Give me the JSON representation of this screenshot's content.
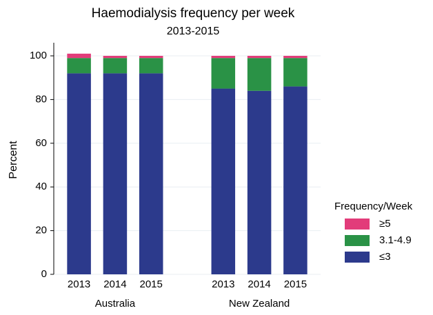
{
  "chart_data": {
    "type": "stacked-bar",
    "title": "Haemodialysis frequency per week",
    "subtitle": "2013-2015",
    "y_label": "Percent",
    "categories": [
      "2013",
      "2014",
      "2015",
      "2013",
      "2014",
      "2015"
    ],
    "groups": [
      {
        "label": "Australia",
        "categories": [
          "2013",
          "2014",
          "2015"
        ]
      },
      {
        "label": "New Zealand",
        "categories": [
          "2013",
          "2014",
          "2015"
        ]
      }
    ],
    "series": [
      {
        "name": "≤3",
        "color": "#2c3a8c",
        "values": [
          92,
          92,
          92,
          85,
          84,
          86
        ]
      },
      {
        "name": "3.1-4.9",
        "color": "#2a9246",
        "values": [
          7,
          7,
          7,
          14,
          15,
          13
        ]
      },
      {
        "name": "≥5",
        "color": "#e23c7a",
        "values": [
          2,
          1,
          1,
          1,
          1,
          1
        ]
      }
    ],
    "legend_title": "Frequency/Week",
    "legend": "right",
    "ylim": [
      0,
      106
    ],
    "yticks": [
      0,
      20,
      40,
      60,
      80,
      100
    ],
    "grid": true
  }
}
